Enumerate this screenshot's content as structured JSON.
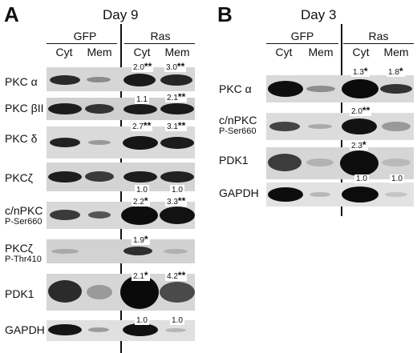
{
  "panelA": {
    "letter": "A",
    "title": "Day 9",
    "groups": [
      "GFP",
      "Ras"
    ],
    "columns": [
      "Cyt",
      "Mem",
      "Cyt",
      "Mem"
    ],
    "rows": [
      {
        "label": "PKC α",
        "sub": "",
        "ras_cyt": "2.0",
        "ras_cyt_sig": "**",
        "ras_mem": "3.0",
        "ras_mem_sig": "**"
      },
      {
        "label": "PKC βII",
        "sub": "",
        "ras_cyt": "1.1",
        "ras_cyt_sig": "",
        "ras_mem": "2.1",
        "ras_mem_sig": "**"
      },
      {
        "label": "PKC δ",
        "sub": "",
        "ras_cyt": "2.7",
        "ras_cyt_sig": "**",
        "ras_mem": "3.1",
        "ras_mem_sig": "**"
      },
      {
        "label": "PKCζ",
        "sub": "",
        "ras_cyt": "1.0",
        "ras_cyt_sig": "",
        "ras_mem": "1.0",
        "ras_mem_sig": ""
      },
      {
        "label": "c/nPKC",
        "sub": "P-Ser660",
        "ras_cyt": "2.2",
        "ras_cyt_sig": "*",
        "ras_mem": "3.3",
        "ras_mem_sig": "**"
      },
      {
        "label": "PKCζ",
        "sub": "P-Thr410",
        "ras_cyt": "1.9",
        "ras_cyt_sig": "*",
        "ras_mem": "",
        "ras_mem_sig": ""
      },
      {
        "label": "PDK1",
        "sub": "",
        "ras_cyt": "2.1",
        "ras_cyt_sig": "*",
        "ras_mem": "4.2",
        "ras_mem_sig": "**"
      },
      {
        "label": "GAPDH",
        "sub": "",
        "ras_cyt": "1.0",
        "ras_cyt_sig": "",
        "ras_mem": "1.0",
        "ras_mem_sig": ""
      }
    ]
  },
  "panelB": {
    "letter": "B",
    "title": "Day 3",
    "groups": [
      "GFP",
      "Ras"
    ],
    "columns": [
      "Cyt",
      "Mem",
      "Cyt",
      "Mem"
    ],
    "rows": [
      {
        "label": "PKC α",
        "sub": "",
        "ras_cyt": "1.3",
        "ras_cyt_sig": "*",
        "ras_mem": "1.8",
        "ras_mem_sig": "*"
      },
      {
        "label": "c/nPKC",
        "sub": "P-Ser660",
        "ras_cyt": "2.0",
        "ras_cyt_sig": "**",
        "ras_mem": "",
        "ras_mem_sig": ""
      },
      {
        "label": "PDK1",
        "sub": "",
        "ras_cyt": "2.3",
        "ras_cyt_sig": "*",
        "ras_mem": "1.0",
        "ras_mem_sig": ""
      },
      {
        "label": "GAPDH",
        "sub": "",
        "ras_cyt": "",
        "ras_cyt_sig": "",
        "ras_mem": "",
        "ras_mem_sig": ""
      }
    ],
    "pdk1_under": [
      "1.0",
      "1.0"
    ]
  },
  "blot_colors": {
    "background": "#d9d9d9",
    "band": "#111111"
  }
}
